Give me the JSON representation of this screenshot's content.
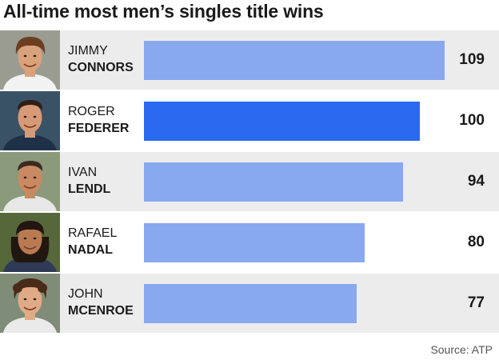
{
  "title": "All-time most men’s singles title wins",
  "source": "Source: ATP",
  "colors": {
    "bar_default": "#88a9f0",
    "bar_highlight": "#2a6aee",
    "row_shade": "#ececec",
    "text": "#1a1a1a"
  },
  "players": [
    {
      "first": "JIMMY",
      "last": "CONNORS",
      "photo_icon": "player-photo-connors",
      "skin": "#d9a27a",
      "hair": "#6b3e22",
      "shirt": "#f2f2f2",
      "bg": "#9a9c92",
      "hair_style": "bowl"
    },
    {
      "first": "ROGER",
      "last": "FEDERER",
      "photo_icon": "player-photo-federer",
      "skin": "#d69a77",
      "hair": "#2e1e16",
      "shirt": "#1f3148",
      "bg": "#3a5266",
      "hair_style": "short"
    },
    {
      "first": "IVAN",
      "last": "LENDL",
      "photo_icon": "player-photo-lendl",
      "skin": "#c98a62",
      "hair": "#3b2a20",
      "shirt": "#e7e7e7",
      "bg": "#8a9a7a",
      "hair_style": "short"
    },
    {
      "first": "RAFAEL",
      "last": "NADAL",
      "photo_icon": "player-photo-nadal",
      "skin": "#b97a52",
      "hair": "#221611",
      "shirt": "#2e3a56",
      "bg": "#56683a",
      "hair_style": "long"
    },
    {
      "first": "JOHN",
      "last": "MCENROE",
      "photo_icon": "player-photo-mcenroe",
      "skin": "#e0aa86",
      "hair": "#4a2a18",
      "shirt": "#eaeaea",
      "bg": "#7f8c78",
      "hair_style": "curly"
    }
  ],
  "chart_data": {
    "type": "bar",
    "orientation": "horizontal",
    "title": "All-time most men’s singles title wins",
    "categories": [
      "JIMMY CONNORS",
      "ROGER FEDERER",
      "IVAN LENDL",
      "RAFAEL NADAL",
      "JOHN MCENROE"
    ],
    "values": [
      109,
      100,
      94,
      80,
      77
    ],
    "highlight": "ROGER FEDERER",
    "xlim": [
      0,
      115
    ],
    "grid": false,
    "legend": "none"
  }
}
